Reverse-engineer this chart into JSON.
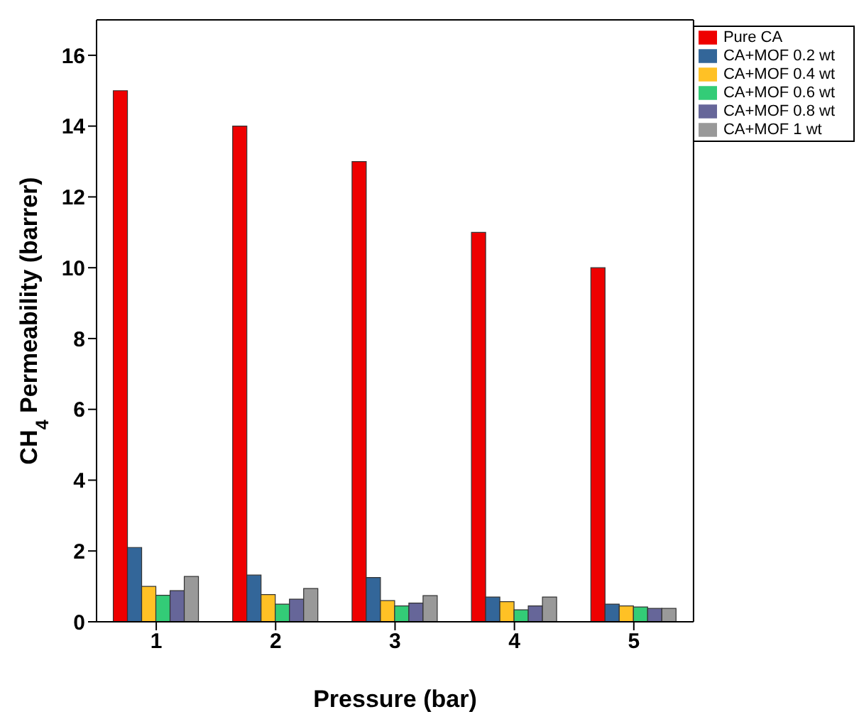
{
  "chart_data": {
    "type": "bar",
    "xlabel": "Pressure (bar)",
    "ylabel": "CH$_{4}$ Permeability (barrer)",
    "categories": [
      "1",
      "2",
      "3",
      "4",
      "5"
    ],
    "series": [
      {
        "name": "Pure CA",
        "color": "#ee0000",
        "values": [
          15,
          14,
          13,
          11,
          10
        ]
      },
      {
        "name": "CA+MOF 0.2 wt",
        "color": "#336699",
        "values": [
          2.1,
          1.32,
          1.25,
          0.7,
          0.5
        ]
      },
      {
        "name": "CA+MOF 0.4 wt",
        "color": "#ffc125",
        "values": [
          1.0,
          0.77,
          0.6,
          0.57,
          0.45
        ]
      },
      {
        "name": "CA+MOF 0.6 wt",
        "color": "#33cc77",
        "values": [
          0.75,
          0.5,
          0.45,
          0.34,
          0.42
        ]
      },
      {
        "name": "CA+MOF 0.8 wt",
        "color": "#666699",
        "values": [
          0.88,
          0.64,
          0.53,
          0.45,
          0.38
        ]
      },
      {
        "name": "CA+MOF 1 wt",
        "color": "#999999",
        "values": [
          1.28,
          0.94,
          0.74,
          0.7,
          0.38
        ]
      }
    ],
    "ylim": [
      0,
      17
    ],
    "yticks": [
      0,
      2,
      4,
      6,
      8,
      10,
      12,
      14,
      16
    ],
    "grid": false,
    "legend": "top right"
  }
}
